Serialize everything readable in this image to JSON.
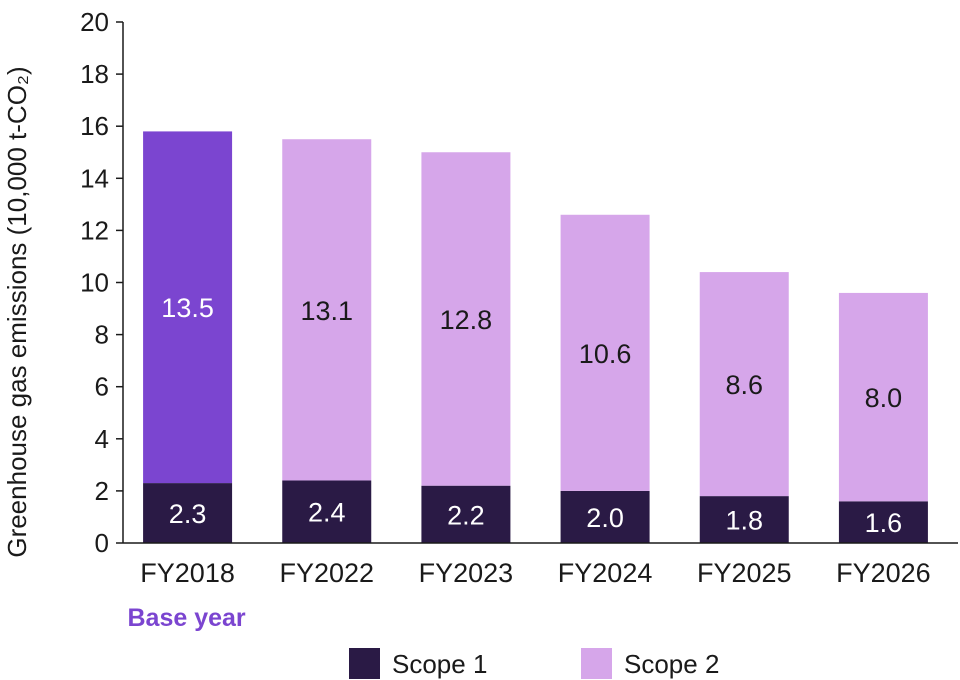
{
  "chart_data": {
    "type": "bar",
    "stacked": true,
    "categories": [
      "FY2018",
      "FY2022",
      "FY2023",
      "FY2024",
      "FY2025",
      "FY2026"
    ],
    "series": [
      {
        "name": "Scope 1",
        "values": [
          2.3,
          2.4,
          2.2,
          2.0,
          1.8,
          1.6
        ],
        "color": "#2a1a45"
      },
      {
        "name": "Scope 2",
        "values": [
          13.5,
          13.1,
          12.8,
          10.6,
          8.6,
          8.0
        ],
        "color": "#d6a6ea"
      }
    ],
    "highlight": {
      "category_index": 0,
      "series_index": 1,
      "color": "#7b45d0"
    },
    "ylabel": "Greenhouse gas emissions (10,000 t-CO₂)",
    "ylim": [
      0,
      20
    ],
    "yticks": [
      0,
      2,
      4,
      6,
      8,
      10,
      12,
      14,
      16,
      18,
      20
    ],
    "grid": false,
    "legend": "bottom",
    "annotation": {
      "text": "Base year",
      "category_index": 0,
      "color": "#7b45d0"
    }
  }
}
